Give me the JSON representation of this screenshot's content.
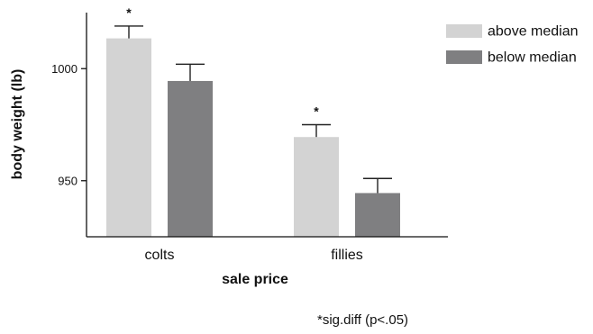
{
  "chart_data": {
    "type": "bar",
    "title": "",
    "xlabel": "sale price",
    "ylabel": "body weight (lb)",
    "categories": [
      "colts",
      "fillies"
    ],
    "series": [
      {
        "name": "above median",
        "values": [
          1013.5,
          969.5
        ],
        "errors": [
          5.5,
          5.5
        ],
        "color": "#d3d3d3"
      },
      {
        "name": "below median",
        "values": [
          994.5,
          944.5
        ],
        "errors": [
          7.5,
          6.5
        ],
        "color": "#7f7f81"
      }
    ],
    "significance": [
      {
        "category": "colts",
        "series": "above median",
        "label": "*"
      },
      {
        "category": "fillies",
        "series": "above median",
        "label": "*"
      }
    ],
    "ylim": [
      925,
      1025
    ],
    "yticks": [
      950,
      1000
    ],
    "legend_position": "top-right",
    "grid": false,
    "footnote": "*sig.diff (p<.05)"
  }
}
